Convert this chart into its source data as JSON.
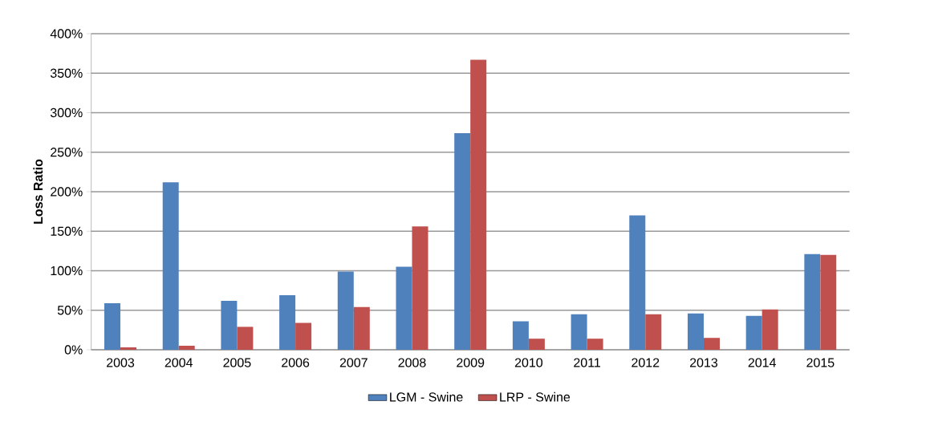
{
  "chart_data": {
    "type": "bar",
    "ylabel": "Loss Ratio",
    "categories": [
      "2003",
      "2004",
      "2005",
      "2006",
      "2007",
      "2008",
      "2009",
      "2010",
      "2011",
      "2012",
      "2013",
      "2014",
      "2015"
    ],
    "series": [
      {
        "name": "LGM - Swine",
        "color": "#4f81bd",
        "values": [
          59,
          212,
          62,
          69,
          99,
          105,
          274,
          36,
          45,
          170,
          46,
          43,
          121
        ]
      },
      {
        "name": "LRP - Swine",
        "color": "#c0504d",
        "values": [
          3,
          5,
          29,
          34,
          54,
          156,
          367,
          14,
          14,
          45,
          15,
          51,
          120
        ]
      }
    ],
    "ylim": [
      0,
      400
    ],
    "yticks": [
      {
        "value": 0,
        "label": "0%"
      },
      {
        "value": 50,
        "label": "50%"
      },
      {
        "value": 100,
        "label": "100%"
      },
      {
        "value": 150,
        "label": "150%"
      },
      {
        "value": 200,
        "label": "200%"
      },
      {
        "value": 250,
        "label": "250%"
      },
      {
        "value": 300,
        "label": "300%"
      },
      {
        "value": 350,
        "label": "350%"
      },
      {
        "value": 400,
        "label": "400%"
      }
    ],
    "grid": "y",
    "legend": "bottom"
  }
}
